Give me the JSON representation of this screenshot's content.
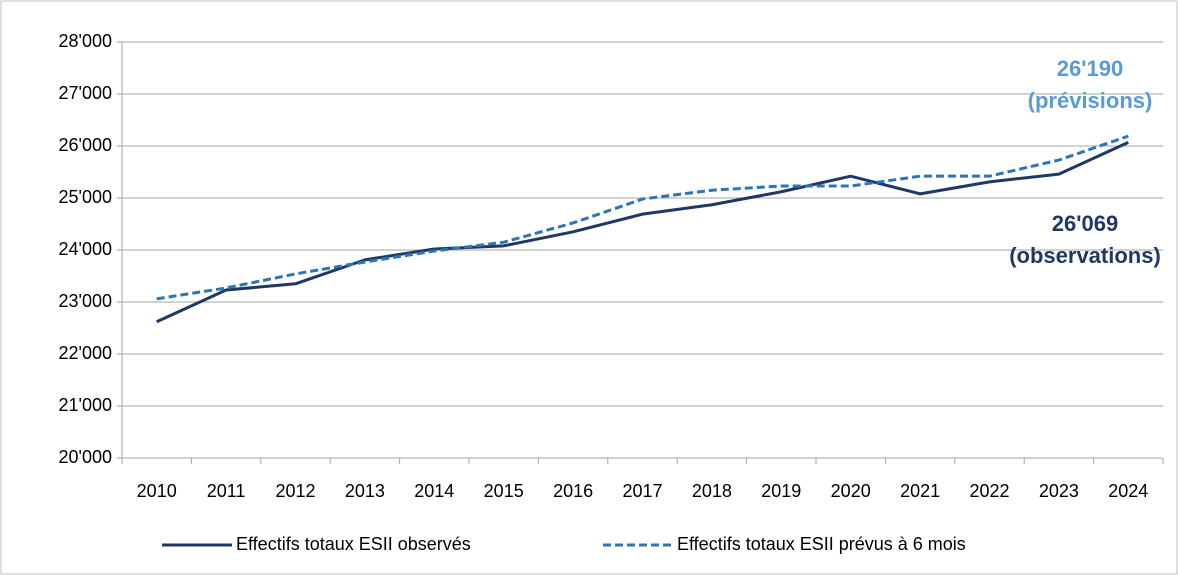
{
  "chart_data": {
    "type": "line",
    "categories": [
      "2010",
      "2011",
      "2012",
      "2013",
      "2014",
      "2015",
      "2016",
      "2017",
      "2018",
      "2019",
      "2020",
      "2021",
      "2022",
      "2023",
      "2024"
    ],
    "series": [
      {
        "name": "Effectifs totaux ESII observés",
        "color": "#203864",
        "dash": false,
        "values": [
          22620,
          23230,
          23350,
          23810,
          24020,
          24080,
          24350,
          24690,
          24870,
          25120,
          25420,
          25080,
          25310,
          25460,
          26069
        ]
      },
      {
        "name": "Effectifs totaux ESII prévus à 6 mois",
        "color": "#2e75b6",
        "dash": true,
        "values": [
          23060,
          23270,
          23540,
          23770,
          23980,
          24150,
          24520,
          24980,
          25150,
          25230,
          25230,
          25420,
          25420,
          25730,
          26190
        ]
      }
    ],
    "ylim": [
      20000,
      28000
    ],
    "yticks": [
      {
        "value": 20000,
        "label": "20'000"
      },
      {
        "value": 21000,
        "label": "21'000"
      },
      {
        "value": 22000,
        "label": "22'000"
      },
      {
        "value": 23000,
        "label": "23'000"
      },
      {
        "value": 24000,
        "label": "24'000"
      },
      {
        "value": 25000,
        "label": "25'000"
      },
      {
        "value": 26000,
        "label": "26'000"
      },
      {
        "value": 27000,
        "label": "27'000"
      },
      {
        "value": 28000,
        "label": "28'000"
      }
    ],
    "grid": true,
    "legend": "bottom",
    "annotations": [
      {
        "lines": [
          "26'190",
          "(prévisions)"
        ],
        "color": "#5b9bd5"
      },
      {
        "lines": [
          "26'069",
          "(observations)"
        ],
        "color": "#203864"
      }
    ]
  }
}
